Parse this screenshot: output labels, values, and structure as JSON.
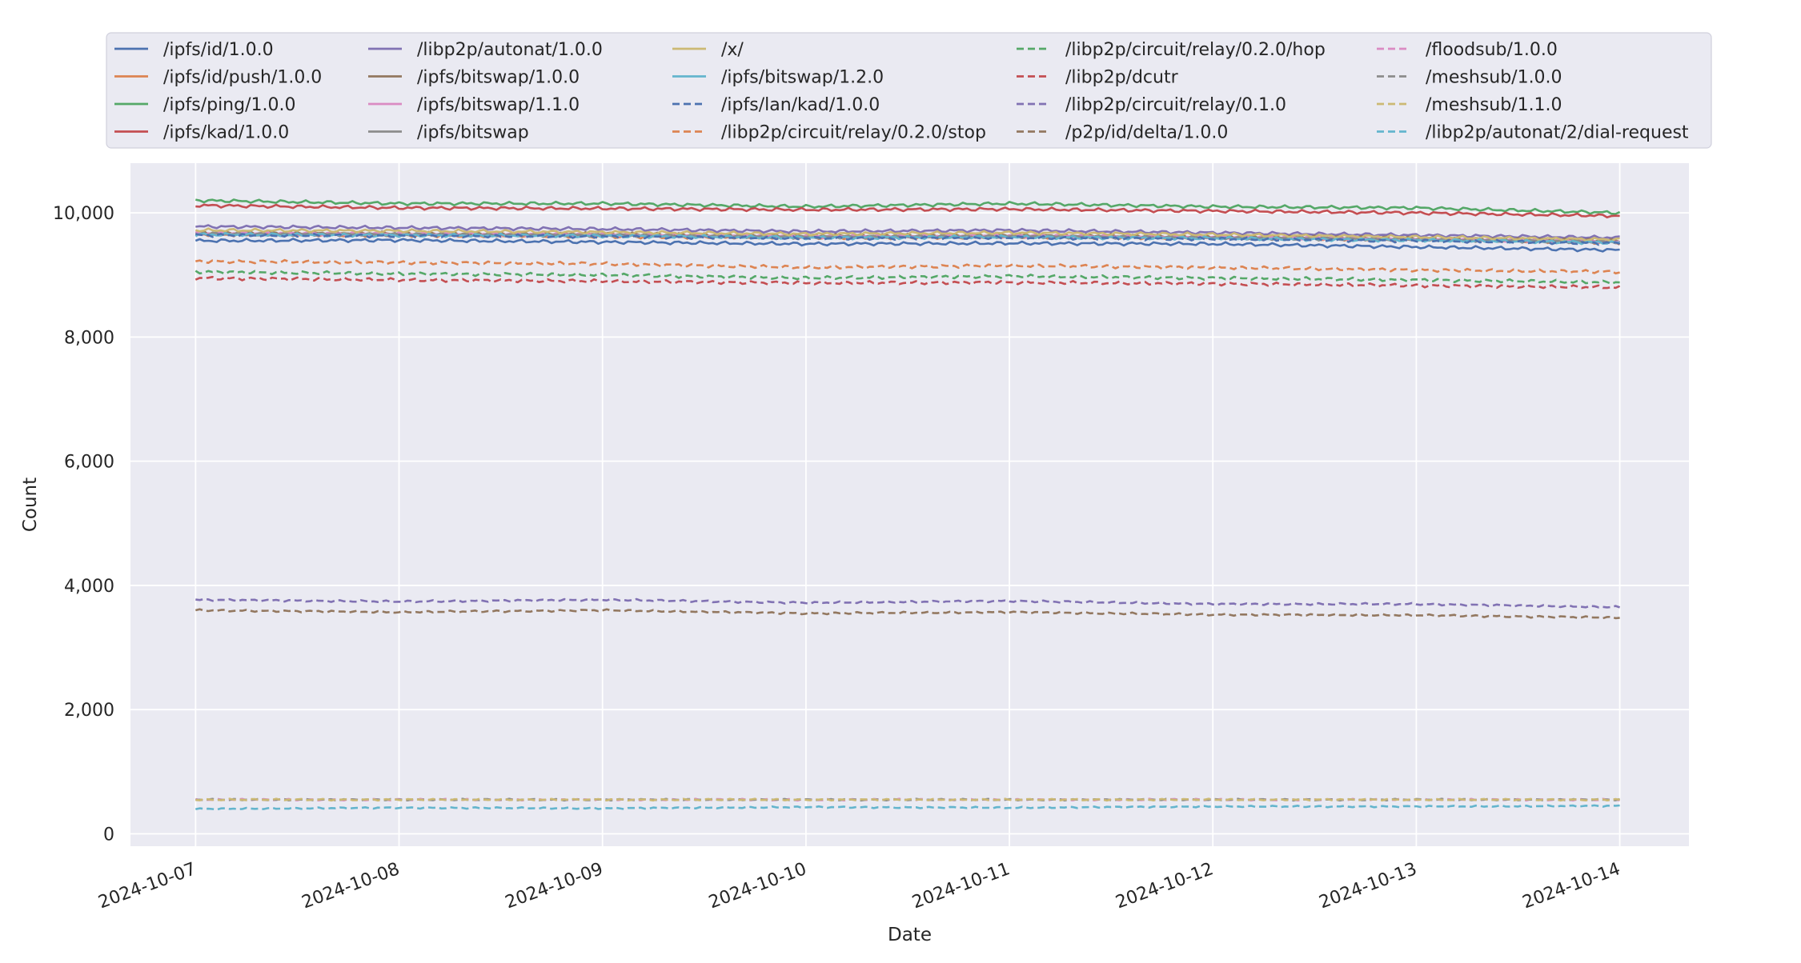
{
  "chart_data": {
    "type": "line",
    "xlabel": "Date",
    "ylabel": "Count",
    "x_range": [
      "2024-10-07",
      "2024-10-14"
    ],
    "ylim": [
      -200,
      10800
    ],
    "x_ticks": [
      "2024-10-07",
      "2024-10-08",
      "2024-10-09",
      "2024-10-10",
      "2024-10-11",
      "2024-10-12",
      "2024-10-13",
      "2024-10-14"
    ],
    "y_ticks": [
      0,
      2000,
      4000,
      6000,
      8000,
      10000
    ],
    "y_tick_labels": [
      "0",
      "2,000",
      "4,000",
      "6,000",
      "8,000",
      "10,000"
    ],
    "grid": true,
    "legend_position": "top",
    "x": [
      "2024-10-07",
      "2024-10-08",
      "2024-10-09",
      "2024-10-10",
      "2024-10-11",
      "2024-10-12",
      "2024-10-13",
      "2024-10-14"
    ],
    "series": [
      {
        "name": "/ipfs/id/1.0.0",
        "color": "#4c72b0",
        "dash": "solid",
        "values": [
          9550,
          9560,
          9530,
          9500,
          9510,
          9500,
          9450,
          9400
        ]
      },
      {
        "name": "/ipfs/id/push/1.0.0",
        "color": "#dd8452",
        "dash": "solid",
        "values": [
          9650,
          9640,
          9620,
          9600,
          9610,
          9600,
          9570,
          9520
        ]
      },
      {
        "name": "/ipfs/ping/1.0.0",
        "color": "#55a868",
        "dash": "solid",
        "values": [
          10200,
          10150,
          10150,
          10100,
          10150,
          10100,
          10080,
          10000
        ]
      },
      {
        "name": "/ipfs/kad/1.0.0",
        "color": "#c44e52",
        "dash": "solid",
        "values": [
          10120,
          10080,
          10070,
          10050,
          10060,
          10030,
          10000,
          9950
        ]
      },
      {
        "name": "/libp2p/autonat/1.0.0",
        "color": "#8172b3",
        "dash": "solid",
        "values": [
          9780,
          9760,
          9740,
          9700,
          9720,
          9680,
          9640,
          9600
        ]
      },
      {
        "name": "/ipfs/bitswap/1.0.0",
        "color": "#937860",
        "dash": "solid",
        "values": [
          9680,
          9670,
          9660,
          9630,
          9640,
          9620,
          9590,
          9550
        ]
      },
      {
        "name": "/ipfs/bitswap/1.1.0",
        "color": "#da8bc3",
        "dash": "solid",
        "values": [
          9670,
          9660,
          9650,
          9620,
          9630,
          9610,
          9580,
          9540
        ]
      },
      {
        "name": "/ipfs/bitswap",
        "color": "#8c8c8c",
        "dash": "solid",
        "values": [
          9660,
          9650,
          9640,
          9610,
          9620,
          9600,
          9570,
          9530
        ]
      },
      {
        "name": "/x/",
        "color": "#ccb974",
        "dash": "solid",
        "values": [
          9720,
          9710,
          9690,
          9660,
          9680,
          9650,
          9610,
          9570
        ]
      },
      {
        "name": "/ipfs/bitswap/1.2.0",
        "color": "#64b5cd",
        "dash": "solid",
        "values": [
          9650,
          9640,
          9630,
          9600,
          9610,
          9590,
          9560,
          9520
        ]
      },
      {
        "name": "/ipfs/lan/kad/1.0.0",
        "color": "#4c72b0",
        "dash": "dashed",
        "values": [
          9640,
          9630,
          9620,
          9590,
          9600,
          9580,
          9550,
          9510
        ]
      },
      {
        "name": "/libp2p/circuit/relay/0.2.0/stop",
        "color": "#dd8452",
        "dash": "dashed",
        "values": [
          9220,
          9200,
          9180,
          9120,
          9150,
          9120,
          9080,
          9050
        ]
      },
      {
        "name": "/libp2p/circuit/relay/0.2.0/hop",
        "color": "#55a868",
        "dash": "dashed",
        "values": [
          9050,
          9020,
          9000,
          8950,
          8980,
          8950,
          8920,
          8880
        ]
      },
      {
        "name": "/libp2p/dcutr",
        "color": "#c44e52",
        "dash": "dashed",
        "values": [
          8950,
          8920,
          8900,
          8870,
          8880,
          8860,
          8830,
          8800
        ]
      },
      {
        "name": "/libp2p/circuit/relay/0.1.0",
        "color": "#8172b3",
        "dash": "dashed",
        "values": [
          3770,
          3740,
          3770,
          3720,
          3750,
          3700,
          3700,
          3650
        ]
      },
      {
        "name": "/p2p/id/delta/1.0.0",
        "color": "#937860",
        "dash": "dashed",
        "values": [
          3600,
          3570,
          3600,
          3550,
          3570,
          3530,
          3520,
          3480
        ]
      },
      {
        "name": "/floodsub/1.0.0",
        "color": "#da8bc3",
        "dash": "dashed",
        "values": [
          550,
          550,
          550,
          550,
          550,
          550,
          550,
          550
        ]
      },
      {
        "name": "/meshsub/1.0.0",
        "color": "#8c8c8c",
        "dash": "dashed",
        "values": [
          550,
          550,
          550,
          550,
          550,
          550,
          550,
          550
        ]
      },
      {
        "name": "/meshsub/1.1.0",
        "color": "#ccb974",
        "dash": "dashed",
        "values": [
          550,
          550,
          550,
          550,
          550,
          550,
          550,
          550
        ]
      },
      {
        "name": "/libp2p/autonat/2/dial-request",
        "color": "#64b5cd",
        "dash": "dashed",
        "values": [
          400,
          420,
          410,
          430,
          420,
          440,
          440,
          450
        ]
      }
    ]
  }
}
